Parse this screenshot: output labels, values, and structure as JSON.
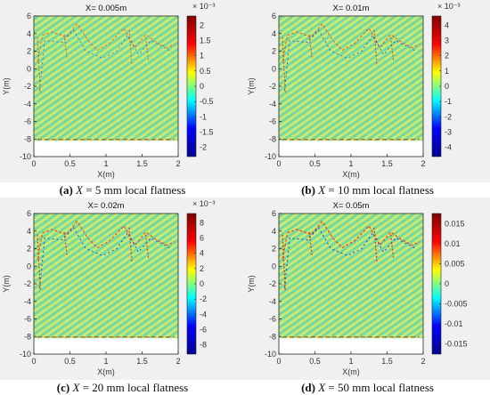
{
  "chart_data": [
    {
      "type": "heatmap",
      "title": "X= 0.005m",
      "xlabel": "X(m)",
      "ylabel": "Y(m)",
      "xlim": [
        0,
        2
      ],
      "ylim": [
        -10,
        6
      ],
      "xticks": [
        "0",
        "0.5",
        "1",
        "1.5",
        "2"
      ],
      "yticks": [
        "6",
        "4",
        "2",
        "0",
        "-2",
        "-4",
        "-6",
        "-8",
        "-10"
      ],
      "colorbar_exponent": "× 10⁻³",
      "colorbar_ticks": [
        "2",
        "1.5",
        "1",
        "0.5",
        "0",
        "-0.5",
        "-1",
        "-1.5",
        "-2"
      ],
      "colorbar_range": [
        -2.3,
        2.3
      ],
      "caption": {
        "label": "(a)",
        "var": "X",
        "text": " = 5 mm local flatness"
      }
    },
    {
      "type": "heatmap",
      "title": "X= 0.01m",
      "xlabel": "X(m)",
      "ylabel": "Y(m)",
      "xlim": [
        0,
        2
      ],
      "ylim": [
        -10,
        6
      ],
      "xticks": [
        "0",
        "0.5",
        "1",
        "1.5",
        "2"
      ],
      "yticks": [
        "6",
        "4",
        "2",
        "0",
        "-2",
        "-4",
        "-6",
        "-8",
        "-10"
      ],
      "colorbar_exponent": "× 10⁻³",
      "colorbar_ticks": [
        "4",
        "3",
        "2",
        "1",
        "0",
        "-1",
        "-2",
        "-3",
        "-4"
      ],
      "colorbar_range": [
        -4.6,
        4.6
      ],
      "caption": {
        "label": "(b)",
        "var": "X",
        "text": " = 10 mm local flatness"
      }
    },
    {
      "type": "heatmap",
      "title": "X= 0.02m",
      "xlabel": "X(m)",
      "ylabel": "Y(m)",
      "xlim": [
        0,
        2
      ],
      "ylim": [
        -10,
        6
      ],
      "xticks": [
        "0",
        "0.5",
        "1",
        "1.5",
        "2"
      ],
      "yticks": [
        "6",
        "4",
        "2",
        "0",
        "-2",
        "-4",
        "-6",
        "-8",
        "-10"
      ],
      "colorbar_exponent": "× 10⁻³",
      "colorbar_ticks": [
        "8",
        "6",
        "4",
        "2",
        "0",
        "-2",
        "-4",
        "-6",
        "-8"
      ],
      "colorbar_range": [
        -9.2,
        9.2
      ],
      "caption": {
        "label": "(c)",
        "var": "X",
        "text": " = 20 mm local flatness"
      }
    },
    {
      "type": "heatmap",
      "title": "X= 0.05m",
      "xlabel": "X(m)",
      "ylabel": "Y(m)",
      "xlim": [
        0,
        2
      ],
      "ylim": [
        -10,
        6
      ],
      "xticks": [
        "0",
        "0.5",
        "1",
        "1.5",
        "2"
      ],
      "yticks": [
        "6",
        "4",
        "2",
        "0",
        "-2",
        "-4",
        "-6",
        "-8",
        "-10"
      ],
      "colorbar_exponent": "",
      "colorbar_ticks": [
        "0.015",
        "0.01",
        "0.005",
        "0",
        "-0.005",
        "-0.01",
        "-0.015"
      ],
      "colorbar_range": [
        -0.0175,
        0.0175
      ],
      "caption": {
        "label": "(d)",
        "var": "X",
        "text": " = 50 mm local flatness"
      }
    }
  ],
  "data_region": {
    "x_range": [
      0,
      2
    ],
    "y_range": [
      -8.2,
      6
    ]
  },
  "colormap": [
    "#00008f",
    "#0000ff",
    "#00ffff",
    "#ffff00",
    "#ff0000",
    "#800000"
  ]
}
